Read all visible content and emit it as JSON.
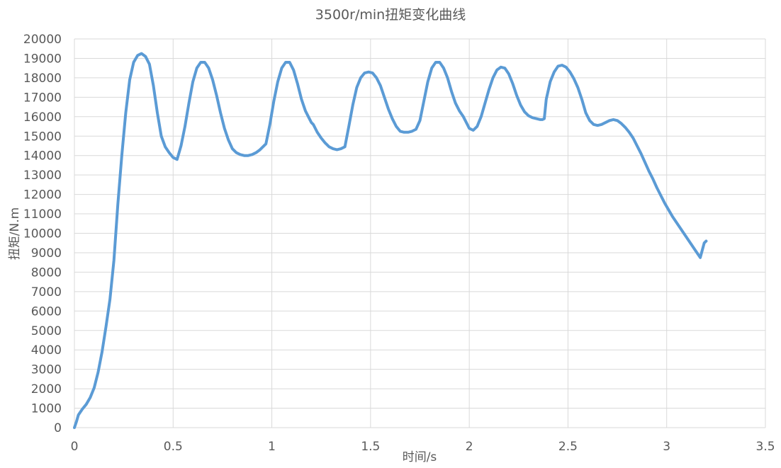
{
  "chart_data": {
    "type": "line",
    "title": "3500r/min扭矩变化曲线",
    "xlabel": "时间/s",
    "ylabel": "扭矩/N.m",
    "xlim": [
      0,
      3.5
    ],
    "ylim": [
      0,
      20000
    ],
    "x_ticks": [
      "0",
      "0.5",
      "1",
      "1.5",
      "2",
      "2.5",
      "3",
      "3.5"
    ],
    "y_ticks": [
      "0",
      "1000",
      "2000",
      "3000",
      "4000",
      "5000",
      "6000",
      "7000",
      "8000",
      "9000",
      "10000",
      "11000",
      "12000",
      "13000",
      "14000",
      "15000",
      "16000",
      "17000",
      "18000",
      "19000",
      "20000"
    ],
    "grid": true,
    "legend": "none",
    "series": [
      {
        "color": "#5b9bd5",
        "points": [
          [
            0.0,
            0
          ],
          [
            0.01,
            300
          ],
          [
            0.02,
            650
          ],
          [
            0.04,
            950
          ],
          [
            0.06,
            1200
          ],
          [
            0.08,
            1550
          ],
          [
            0.1,
            2050
          ],
          [
            0.12,
            2850
          ],
          [
            0.14,
            3900
          ],
          [
            0.16,
            5200
          ],
          [
            0.18,
            6600
          ],
          [
            0.2,
            8600
          ],
          [
            0.22,
            11500
          ],
          [
            0.24,
            14000
          ],
          [
            0.26,
            16200
          ],
          [
            0.28,
            17900
          ],
          [
            0.3,
            18800
          ],
          [
            0.32,
            19150
          ],
          [
            0.34,
            19250
          ],
          [
            0.36,
            19100
          ],
          [
            0.38,
            18700
          ],
          [
            0.4,
            17600
          ],
          [
            0.42,
            16200
          ],
          [
            0.44,
            15000
          ],
          [
            0.46,
            14450
          ],
          [
            0.48,
            14150
          ],
          [
            0.5,
            13900
          ],
          [
            0.52,
            13800
          ],
          [
            0.54,
            14500
          ],
          [
            0.56,
            15500
          ],
          [
            0.58,
            16700
          ],
          [
            0.6,
            17800
          ],
          [
            0.62,
            18500
          ],
          [
            0.64,
            18800
          ],
          [
            0.66,
            18800
          ],
          [
            0.68,
            18500
          ],
          [
            0.7,
            17900
          ],
          [
            0.72,
            17100
          ],
          [
            0.74,
            16200
          ],
          [
            0.76,
            15400
          ],
          [
            0.78,
            14800
          ],
          [
            0.8,
            14350
          ],
          [
            0.82,
            14150
          ],
          [
            0.84,
            14050
          ],
          [
            0.86,
            14000
          ],
          [
            0.88,
            14000
          ],
          [
            0.9,
            14050
          ],
          [
            0.92,
            14150
          ],
          [
            0.94,
            14300
          ],
          [
            0.96,
            14500
          ],
          [
            0.97,
            14600
          ],
          [
            0.99,
            15600
          ],
          [
            1.01,
            16800
          ],
          [
            1.03,
            17800
          ],
          [
            1.05,
            18500
          ],
          [
            1.07,
            18800
          ],
          [
            1.09,
            18800
          ],
          [
            1.11,
            18400
          ],
          [
            1.13,
            17700
          ],
          [
            1.15,
            16900
          ],
          [
            1.17,
            16300
          ],
          [
            1.19,
            15900
          ],
          [
            1.2,
            15700
          ],
          [
            1.21,
            15600
          ],
          [
            1.23,
            15200
          ],
          [
            1.25,
            14900
          ],
          [
            1.27,
            14650
          ],
          [
            1.29,
            14450
          ],
          [
            1.31,
            14350
          ],
          [
            1.33,
            14300
          ],
          [
            1.35,
            14350
          ],
          [
            1.37,
            14450
          ],
          [
            1.39,
            15500
          ],
          [
            1.41,
            16600
          ],
          [
            1.43,
            17500
          ],
          [
            1.45,
            18000
          ],
          [
            1.47,
            18250
          ],
          [
            1.49,
            18300
          ],
          [
            1.51,
            18250
          ],
          [
            1.53,
            18000
          ],
          [
            1.55,
            17600
          ],
          [
            1.57,
            17000
          ],
          [
            1.59,
            16400
          ],
          [
            1.61,
            15900
          ],
          [
            1.63,
            15500
          ],
          [
            1.65,
            15250
          ],
          [
            1.67,
            15200
          ],
          [
            1.69,
            15200
          ],
          [
            1.71,
            15250
          ],
          [
            1.73,
            15350
          ],
          [
            1.75,
            15800
          ],
          [
            1.77,
            16800
          ],
          [
            1.79,
            17800
          ],
          [
            1.81,
            18500
          ],
          [
            1.83,
            18800
          ],
          [
            1.85,
            18800
          ],
          [
            1.87,
            18500
          ],
          [
            1.89,
            18000
          ],
          [
            1.91,
            17300
          ],
          [
            1.93,
            16700
          ],
          [
            1.95,
            16300
          ],
          [
            1.97,
            16000
          ],
          [
            1.99,
            15600
          ],
          [
            2.0,
            15400
          ],
          [
            2.02,
            15300
          ],
          [
            2.04,
            15500
          ],
          [
            2.06,
            16000
          ],
          [
            2.08,
            16700
          ],
          [
            2.1,
            17400
          ],
          [
            2.12,
            18000
          ],
          [
            2.14,
            18400
          ],
          [
            2.16,
            18550
          ],
          [
            2.18,
            18500
          ],
          [
            2.2,
            18200
          ],
          [
            2.22,
            17700
          ],
          [
            2.24,
            17100
          ],
          [
            2.26,
            16600
          ],
          [
            2.28,
            16250
          ],
          [
            2.3,
            16050
          ],
          [
            2.32,
            15950
          ],
          [
            2.34,
            15900
          ],
          [
            2.36,
            15850
          ],
          [
            2.37,
            15850
          ],
          [
            2.38,
            15900
          ],
          [
            2.39,
            16900
          ],
          [
            2.41,
            17800
          ],
          [
            2.43,
            18300
          ],
          [
            2.45,
            18600
          ],
          [
            2.47,
            18650
          ],
          [
            2.49,
            18550
          ],
          [
            2.51,
            18300
          ],
          [
            2.53,
            17950
          ],
          [
            2.55,
            17500
          ],
          [
            2.57,
            16900
          ],
          [
            2.59,
            16200
          ],
          [
            2.61,
            15800
          ],
          [
            2.63,
            15600
          ],
          [
            2.65,
            15550
          ],
          [
            2.67,
            15600
          ],
          [
            2.69,
            15700
          ],
          [
            2.71,
            15800
          ],
          [
            2.73,
            15850
          ],
          [
            2.75,
            15800
          ],
          [
            2.77,
            15650
          ],
          [
            2.79,
            15450
          ],
          [
            2.81,
            15200
          ],
          [
            2.83,
            14900
          ],
          [
            2.85,
            14500
          ],
          [
            2.87,
            14100
          ],
          [
            2.89,
            13650
          ],
          [
            2.91,
            13200
          ],
          [
            2.93,
            12800
          ],
          [
            2.95,
            12350
          ],
          [
            2.97,
            11950
          ],
          [
            2.99,
            11550
          ],
          [
            3.01,
            11200
          ],
          [
            3.03,
            10850
          ],
          [
            3.05,
            10550
          ],
          [
            3.07,
            10250
          ],
          [
            3.09,
            9950
          ],
          [
            3.11,
            9650
          ],
          [
            3.13,
            9350
          ],
          [
            3.15,
            9050
          ],
          [
            3.17,
            8750
          ],
          [
            3.19,
            9500
          ],
          [
            3.2,
            9600
          ]
        ]
      }
    ]
  }
}
